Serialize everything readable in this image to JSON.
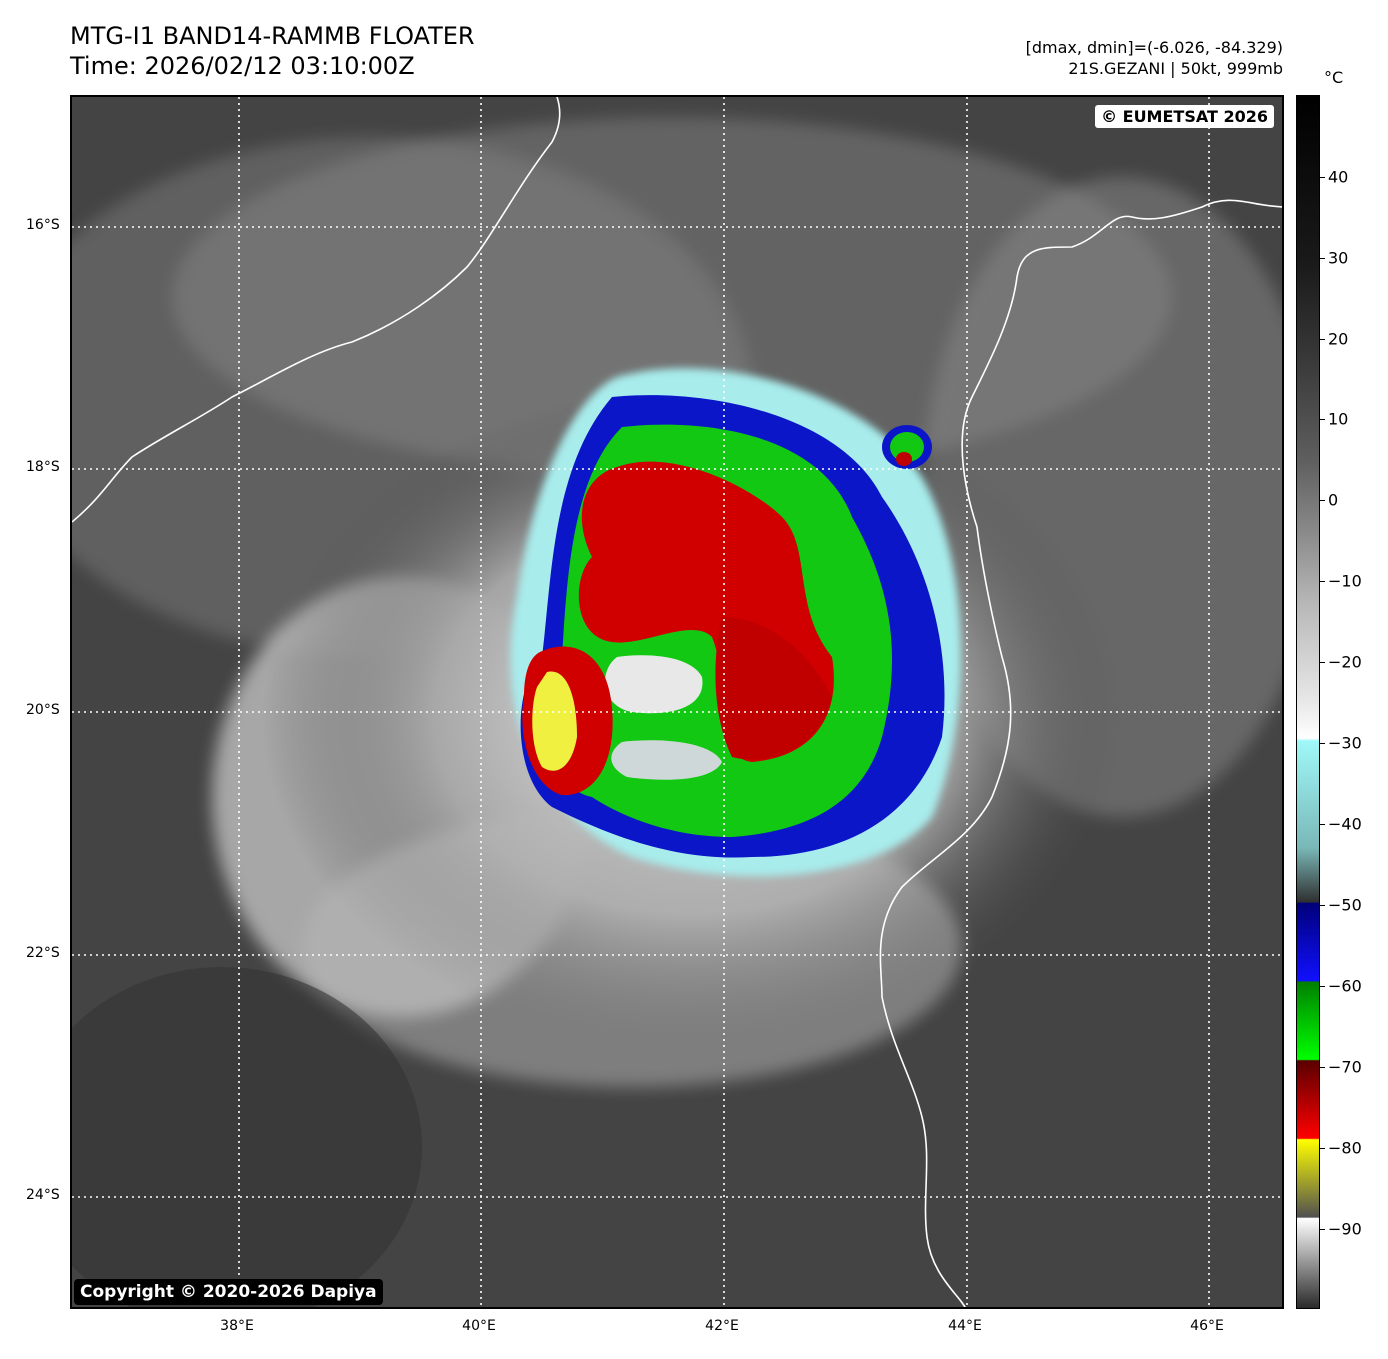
{
  "header": {
    "title_line1": "MTG-I1 BAND14-RAMMB FLOATER",
    "title_line2": "Time: 2026/02/12 03:10:00Z",
    "info_line1": "[dmax, dmin]=(-6.026, -84.329)",
    "info_line2": "21S.GEZANI | 50kt, 999mb",
    "unit": "°C"
  },
  "map": {
    "watermark_top": "© EUMETSAT 2026",
    "watermark_bottom": "Copyright © 2020-2026 Dapiya",
    "lat_labels": [
      "16°S",
      "18°S",
      "20°S",
      "22°S",
      "24°S"
    ],
    "lon_labels": [
      "38°E",
      "40°E",
      "42°E",
      "44°E",
      "46°E"
    ]
  },
  "colorbar": {
    "ticks": [
      "40",
      "30",
      "20",
      "10",
      "0",
      "−10",
      "−20",
      "−30",
      "−40",
      "−50",
      "−60",
      "−70",
      "−80",
      "−90"
    ]
  }
}
